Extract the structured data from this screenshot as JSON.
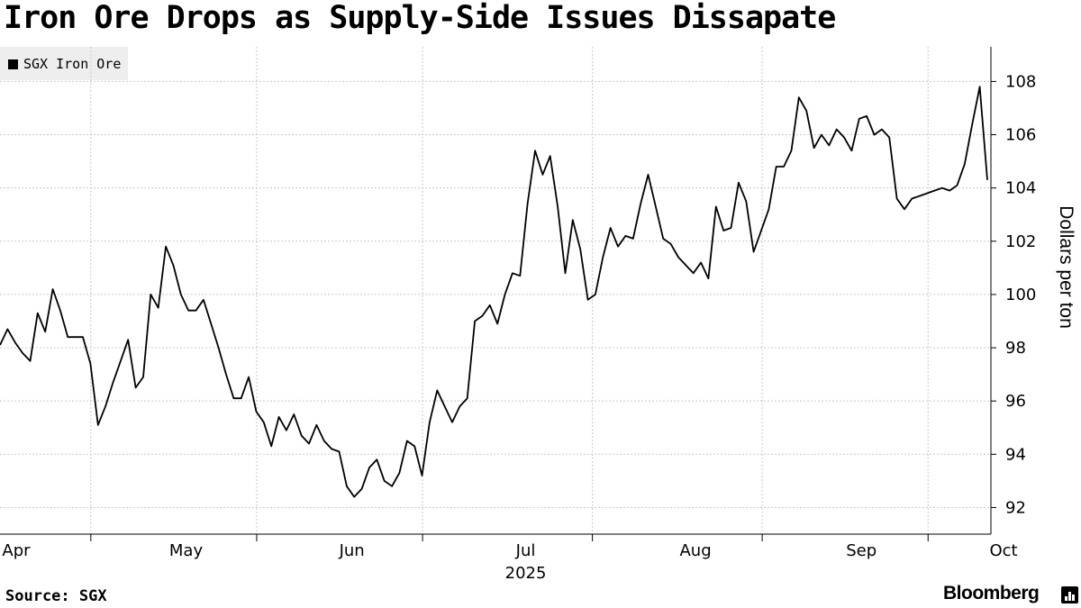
{
  "header": {
    "title": "Iron Ore Drops as Supply-Side Issues Dissapate"
  },
  "legend": {
    "label": "SGX Iron Ore",
    "color": "#000000"
  },
  "footer": {
    "source": "Source: SGX",
    "brand": "Bloomberg"
  },
  "chart_data": {
    "type": "line",
    "title": "Iron Ore Drops as Supply-Side Issues Dissapate",
    "ylabel": "Dollars per ton",
    "xlabel": "",
    "ylim": [
      91,
      109.3
    ],
    "yticks": [
      92,
      94,
      96,
      98,
      100,
      102,
      104,
      106,
      108
    ],
    "x_start_index": 0,
    "x_end_index": 125,
    "month_ticks": [
      {
        "label": "Apr",
        "index": 0
      },
      {
        "label": "May",
        "index": 21.5
      },
      {
        "label": "Jun",
        "index": 42.5
      },
      {
        "label": "Jul",
        "index": 64.5
      },
      {
        "label": "Aug",
        "index": 86
      },
      {
        "label": "Sep",
        "index": 107
      },
      {
        "label": "Oct",
        "index": 125
      }
    ],
    "boundary_ticks": [
      11.5,
      32.5,
      53.5,
      75,
      96.5,
      117.5
    ],
    "year_label": "2025",
    "series": [
      {
        "name": "SGX Iron Ore",
        "color": "#000000",
        "values": [
          98.1,
          98.7,
          98.2,
          97.8,
          97.5,
          99.3,
          98.6,
          100.2,
          99.4,
          98.4,
          98.4,
          98.4,
          97.4,
          95.1,
          95.8,
          96.7,
          97.5,
          98.3,
          96.5,
          96.9,
          100.0,
          99.5,
          101.8,
          101.1,
          100.0,
          99.4,
          99.4,
          99.8,
          98.9,
          98.0,
          97.0,
          96.1,
          96.1,
          96.9,
          95.6,
          95.2,
          94.3,
          95.4,
          94.9,
          95.5,
          94.7,
          94.4,
          95.1,
          94.5,
          94.2,
          94.1,
          92.8,
          92.4,
          92.7,
          93.5,
          93.8,
          93.0,
          92.8,
          93.3,
          94.5,
          94.3,
          93.2,
          95.2,
          96.4,
          95.8,
          95.2,
          95.8,
          96.1,
          99.0,
          99.2,
          99.6,
          98.9,
          100.0,
          100.8,
          100.7,
          103.4,
          105.4,
          104.5,
          105.2,
          103.3,
          100.8,
          102.8,
          101.7,
          99.8,
          100.0,
          101.4,
          102.5,
          101.8,
          102.2,
          102.1,
          103.4,
          104.5,
          103.3,
          102.1,
          101.9,
          101.4,
          101.1,
          100.8,
          101.2,
          100.6,
          103.3,
          102.4,
          102.5,
          104.2,
          103.5,
          101.6,
          102.4,
          103.2,
          104.8,
          104.8,
          105.4,
          107.4,
          106.9,
          105.5,
          106.0,
          105.6,
          106.2,
          105.9,
          105.4,
          106.6,
          106.7,
          106.0,
          106.2,
          105.9,
          103.6,
          103.2,
          103.6,
          103.7,
          103.8,
          103.9,
          104.0,
          103.9,
          104.1,
          104.9,
          106.4,
          107.8,
          104.3
        ]
      }
    ]
  }
}
